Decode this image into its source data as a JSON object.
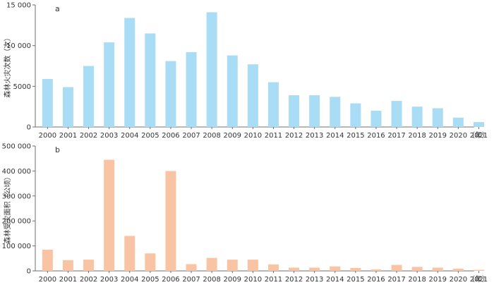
{
  "chart_data": [
    {
      "type": "bar",
      "panel_label": "a",
      "ylabel": "森林火灾次数（次）",
      "xunit": "（年）",
      "color": "#a9dcf5",
      "categories": [
        "2000",
        "2001",
        "2002",
        "2003",
        "2004",
        "2005",
        "2006",
        "2007",
        "2008",
        "2009",
        "2010",
        "2011",
        "2012",
        "2013",
        "2014",
        "2015",
        "2016",
        "2017",
        "2018",
        "2019",
        "2020",
        "2021"
      ],
      "values": [
        5900,
        4900,
        7500,
        10400,
        13400,
        11500,
        8100,
        9200,
        14100,
        8800,
        7700,
        5500,
        3900,
        3900,
        3700,
        2900,
        2000,
        3200,
        2500,
        2300,
        1150,
        600
      ],
      "ylim": [
        0,
        15000
      ],
      "yticks": [
        0,
        5000,
        10000,
        15000
      ],
      "ytick_labels": [
        "0",
        "5000",
        "10 000",
        "15 000"
      ]
    },
    {
      "type": "bar",
      "panel_label": "b",
      "ylabel": "森林受灾面积（公顷）",
      "xunit": "（年）",
      "color": "#f8c4a4",
      "categories": [
        "2000",
        "2001",
        "2002",
        "2003",
        "2004",
        "2005",
        "2006",
        "2007",
        "2008",
        "2009",
        "2010",
        "2011",
        "2012",
        "2013",
        "2014",
        "2015",
        "2016",
        "2017",
        "2018",
        "2019",
        "2020",
        "2021"
      ],
      "values": [
        85000,
        43000,
        45000,
        445000,
        140000,
        70000,
        400000,
        27000,
        52000,
        45000,
        45000,
        26000,
        13000,
        13000,
        18000,
        12000,
        6000,
        24000,
        16000,
        13000,
        9000,
        4000
      ],
      "ylim": [
        0,
        500000
      ],
      "yticks": [
        0,
        100000,
        200000,
        300000,
        400000,
        500000
      ],
      "ytick_labels": [
        "0",
        "100 000",
        "200 000",
        "300 000",
        "400 000",
        "500 000"
      ]
    }
  ]
}
